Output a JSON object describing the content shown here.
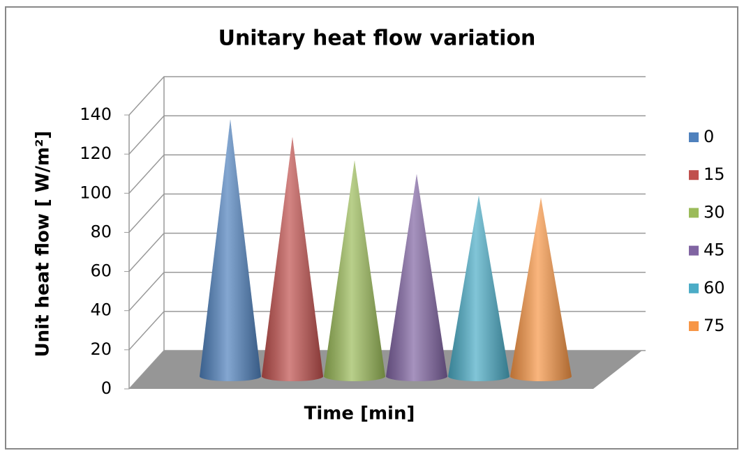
{
  "chart_data": {
    "type": "cone",
    "title": "Unitary heat flow variation",
    "x_label": "Time [min]",
    "y_label": "Unit heat flow [ W/m²]",
    "categories": [
      null
    ],
    "series": [
      {
        "name": "0",
        "color": "#4f81bd",
        "values": [
          128
        ]
      },
      {
        "name": "15",
        "color": "#c0504d",
        "values": [
          119
        ]
      },
      {
        "name": "30",
        "color": "#9bbb59",
        "values": [
          107
        ]
      },
      {
        "name": "45",
        "color": "#8064a2",
        "values": [
          100
        ]
      },
      {
        "name": "60",
        "color": "#4bacc6",
        "values": [
          89
        ]
      },
      {
        "name": "75",
        "color": "#f79646",
        "values": [
          88
        ]
      }
    ],
    "ylim": [
      0,
      140
    ],
    "yticks": [
      0,
      20,
      40,
      60,
      80,
      100,
      120,
      140
    ],
    "grid": true,
    "legend": "right"
  }
}
